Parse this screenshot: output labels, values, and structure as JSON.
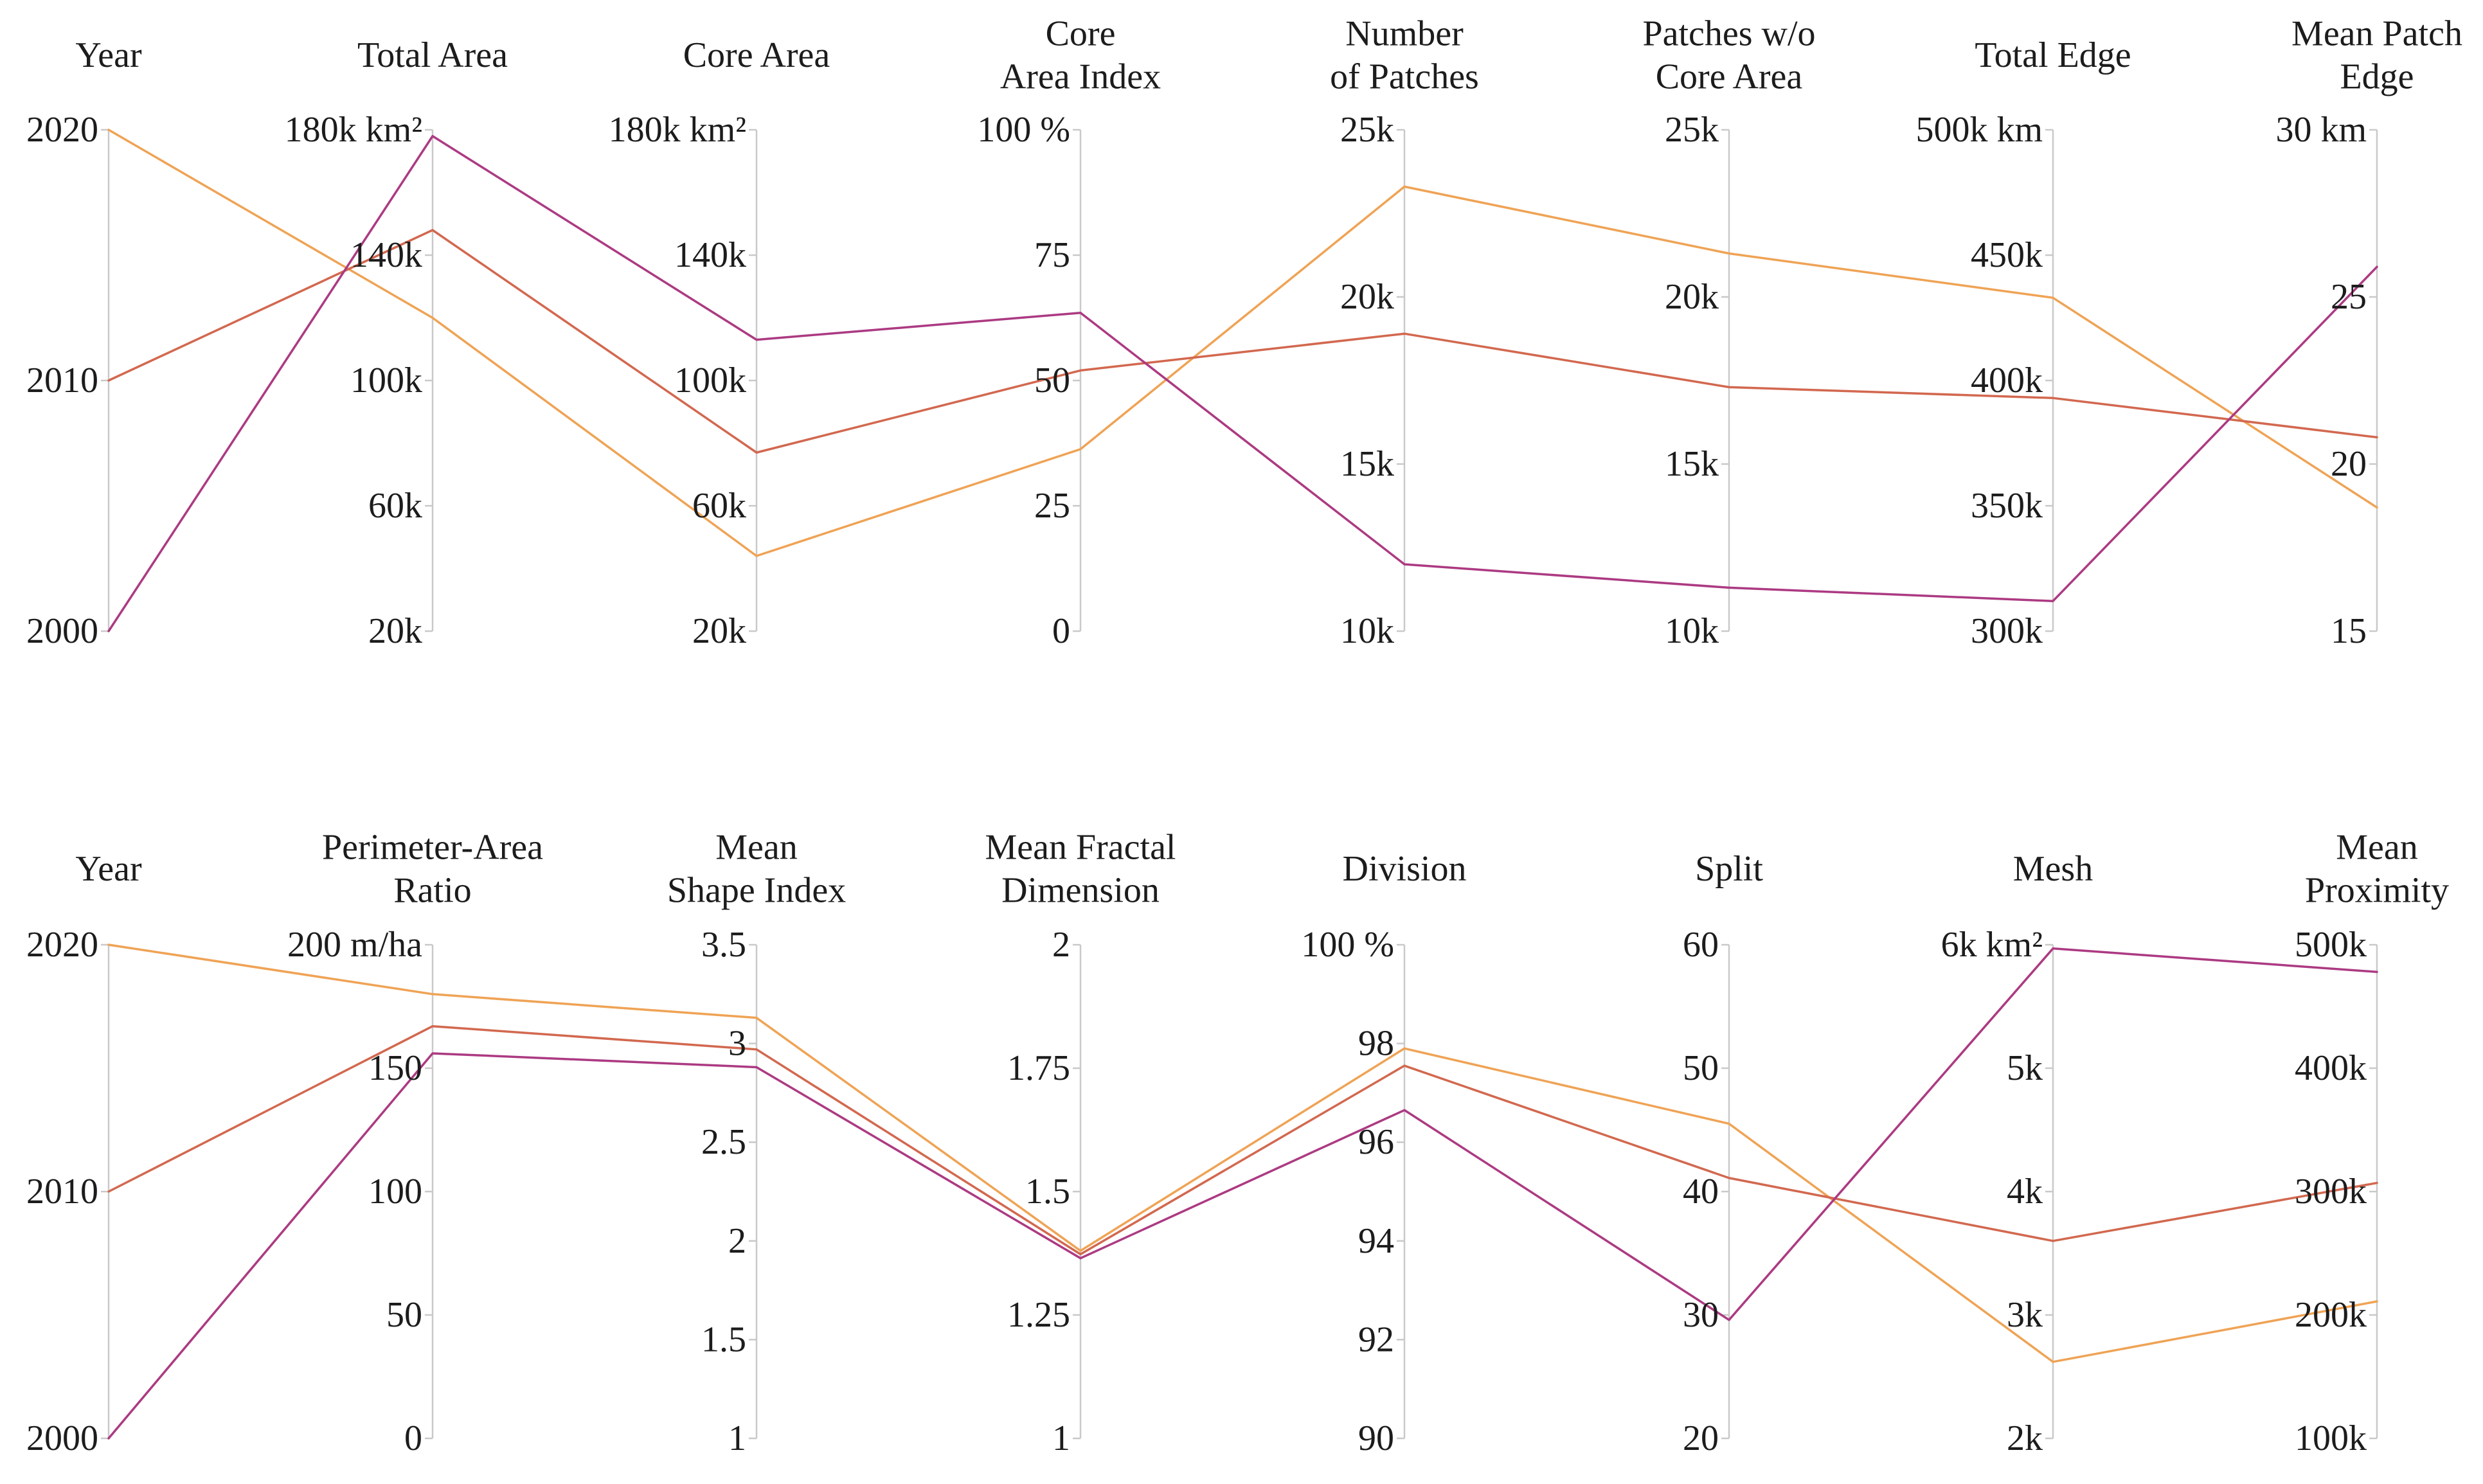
{
  "figure": {
    "background": "#ffffff",
    "text_color": "#1c1c1c",
    "axis_color": "#c9c9c9"
  },
  "chart_data": [
    {
      "type": "line",
      "subtype": "parallel-coordinates",
      "row": "top",
      "grid": false,
      "legend_position": "none",
      "axes": [
        {
          "title": [
            "Year"
          ],
          "min": 2000,
          "max": 2020,
          "ticks": [
            {
              "label": "2020",
              "value": 2020
            },
            {
              "label": "2010",
              "value": 2010
            },
            {
              "label": "2000",
              "value": 2000
            }
          ]
        },
        {
          "title": [
            "Total Area"
          ],
          "min": 20000,
          "max": 180000,
          "ticks": [
            {
              "label": "180k km²",
              "value": 180000
            },
            {
              "label": "140k",
              "value": 140000
            },
            {
              "label": "100k",
              "value": 100000
            },
            {
              "label": "60k",
              "value": 60000
            },
            {
              "label": "20k",
              "value": 20000
            }
          ]
        },
        {
          "title": [
            "Core Area"
          ],
          "min": 20000,
          "max": 180000,
          "ticks": [
            {
              "label": "180k km²",
              "value": 180000
            },
            {
              "label": "140k",
              "value": 140000
            },
            {
              "label": "100k",
              "value": 100000
            },
            {
              "label": "60k",
              "value": 60000
            },
            {
              "label": "20k",
              "value": 20000
            }
          ]
        },
        {
          "title": [
            "Core",
            "Area Index"
          ],
          "min": 0,
          "max": 100,
          "ticks": [
            {
              "label": "100 %",
              "value": 100
            },
            {
              "label": "75",
              "value": 75
            },
            {
              "label": "50",
              "value": 50
            },
            {
              "label": "25",
              "value": 25
            },
            {
              "label": "0",
              "value": 0
            }
          ]
        },
        {
          "title": [
            "Number",
            "of Patches"
          ],
          "min": 10000,
          "max": 25000,
          "ticks": [
            {
              "label": "25k",
              "value": 25000
            },
            {
              "label": "20k",
              "value": 20000
            },
            {
              "label": "15k",
              "value": 15000
            },
            {
              "label": "10k",
              "value": 10000
            }
          ]
        },
        {
          "title": [
            "Patches w/o",
            "Core Area"
          ],
          "min": 10000,
          "max": 25000,
          "ticks": [
            {
              "label": "25k",
              "value": 25000
            },
            {
              "label": "20k",
              "value": 20000
            },
            {
              "label": "15k",
              "value": 15000
            },
            {
              "label": "10k",
              "value": 10000
            }
          ]
        },
        {
          "title": [
            "Total Edge"
          ],
          "min": 300000,
          "max": 500000,
          "ticks": [
            {
              "label": "500k km",
              "value": 500000
            },
            {
              "label": "450k",
              "value": 450000
            },
            {
              "label": "400k",
              "value": 400000
            },
            {
              "label": "350k",
              "value": 350000
            },
            {
              "label": "300k",
              "value": 300000
            }
          ]
        },
        {
          "title": [
            "Mean Patch",
            "Edge"
          ],
          "min": 15,
          "max": 30,
          "ticks": [
            {
              "label": "30 km",
              "value": 30
            },
            {
              "label": "25",
              "value": 25
            },
            {
              "label": "20",
              "value": 20
            },
            {
              "label": "15",
              "value": 15
            }
          ]
        }
      ],
      "series": [
        {
          "name": "2020",
          "color": "#EFA355",
          "values": [
            2020,
            120000,
            44000,
            36.3,
            23300,
            21300,
            433000,
            18.7
          ]
        },
        {
          "name": "2010",
          "color": "#D2684F",
          "values": [
            2010,
            148000,
            77000,
            52,
            18900,
            17300,
            393000,
            20.8
          ]
        },
        {
          "name": "2000",
          "color": "#AC3A82",
          "values": [
            2000,
            178000,
            113000,
            63.5,
            12000,
            11300,
            312000,
            25.9
          ]
        }
      ]
    },
    {
      "type": "line",
      "subtype": "parallel-coordinates",
      "row": "bottom",
      "grid": false,
      "legend_position": "none",
      "axes": [
        {
          "title": [
            "Year"
          ],
          "min": 2000,
          "max": 2020,
          "ticks": [
            {
              "label": "2020",
              "value": 2020
            },
            {
              "label": "2010",
              "value": 2010
            },
            {
              "label": "2000",
              "value": 2000
            }
          ]
        },
        {
          "title": [
            "Perimeter-Area",
            "Ratio"
          ],
          "min": 0,
          "max": 200,
          "ticks": [
            {
              "label": "200 m/ha",
              "value": 200
            },
            {
              "label": "150",
              "value": 150
            },
            {
              "label": "100",
              "value": 100
            },
            {
              "label": "50",
              "value": 50
            },
            {
              "label": "0",
              "value": 0
            }
          ]
        },
        {
          "title": [
            "Mean",
            "Shape Index"
          ],
          "min": 1,
          "max": 3.5,
          "ticks": [
            {
              "label": "3.5",
              "value": 3.5
            },
            {
              "label": "3",
              "value": 3
            },
            {
              "label": "2.5",
              "value": 2.5
            },
            {
              "label": "2",
              "value": 2
            },
            {
              "label": "1.5",
              "value": 1.5
            },
            {
              "label": "1",
              "value": 1
            }
          ]
        },
        {
          "title": [
            "Mean Fractal",
            "Dimension"
          ],
          "min": 1,
          "max": 2,
          "ticks": [
            {
              "label": "2",
              "value": 2
            },
            {
              "label": "1.75",
              "value": 1.75
            },
            {
              "label": "1.5",
              "value": 1.5
            },
            {
              "label": "1.25",
              "value": 1.25
            },
            {
              "label": "1",
              "value": 1
            }
          ]
        },
        {
          "title": [
            "Division"
          ],
          "min": 90,
          "max": 100,
          "ticks": [
            {
              "label": "100 %",
              "value": 100
            },
            {
              "label": "98",
              "value": 98
            },
            {
              "label": "96",
              "value": 96
            },
            {
              "label": "94",
              "value": 94
            },
            {
              "label": "92",
              "value": 92
            },
            {
              "label": "90",
              "value": 90
            }
          ]
        },
        {
          "title": [
            "Split"
          ],
          "min": 20,
          "max": 60,
          "ticks": [
            {
              "label": "60",
              "value": 60
            },
            {
              "label": "50",
              "value": 50
            },
            {
              "label": "40",
              "value": 40
            },
            {
              "label": "30",
              "value": 30
            },
            {
              "label": "20",
              "value": 20
            }
          ]
        },
        {
          "title": [
            "Mesh"
          ],
          "min": 2000,
          "max": 6000,
          "ticks": [
            {
              "label": "6k km²",
              "value": 6000
            },
            {
              "label": "5k",
              "value": 5000
            },
            {
              "label": "4k",
              "value": 4000
            },
            {
              "label": "3k",
              "value": 3000
            },
            {
              "label": "2k",
              "value": 2000
            }
          ]
        },
        {
          "title": [
            "Mean",
            "Proximity"
          ],
          "min": 100000,
          "max": 500000,
          "ticks": [
            {
              "label": "500k",
              "value": 500000
            },
            {
              "label": "400k",
              "value": 400000
            },
            {
              "label": "300k",
              "value": 300000
            },
            {
              "label": "200k",
              "value": 200000
            },
            {
              "label": "100k",
              "value": 100000
            }
          ]
        }
      ],
      "series": [
        {
          "name": "2020",
          "color": "#EFA355",
          "values": [
            2020,
            180,
            3.13,
            1.38,
            97.9,
            45.5,
            2620,
            211000
          ]
        },
        {
          "name": "2010",
          "color": "#D2684F",
          "values": [
            2010,
            167,
            2.97,
            1.373,
            97.55,
            41.1,
            3600,
            307000
          ]
        },
        {
          "name": "2000",
          "color": "#AC3A82",
          "values": [
            2000,
            156,
            2.88,
            1.365,
            96.65,
            29.6,
            5970,
            478000
          ]
        }
      ]
    }
  ]
}
